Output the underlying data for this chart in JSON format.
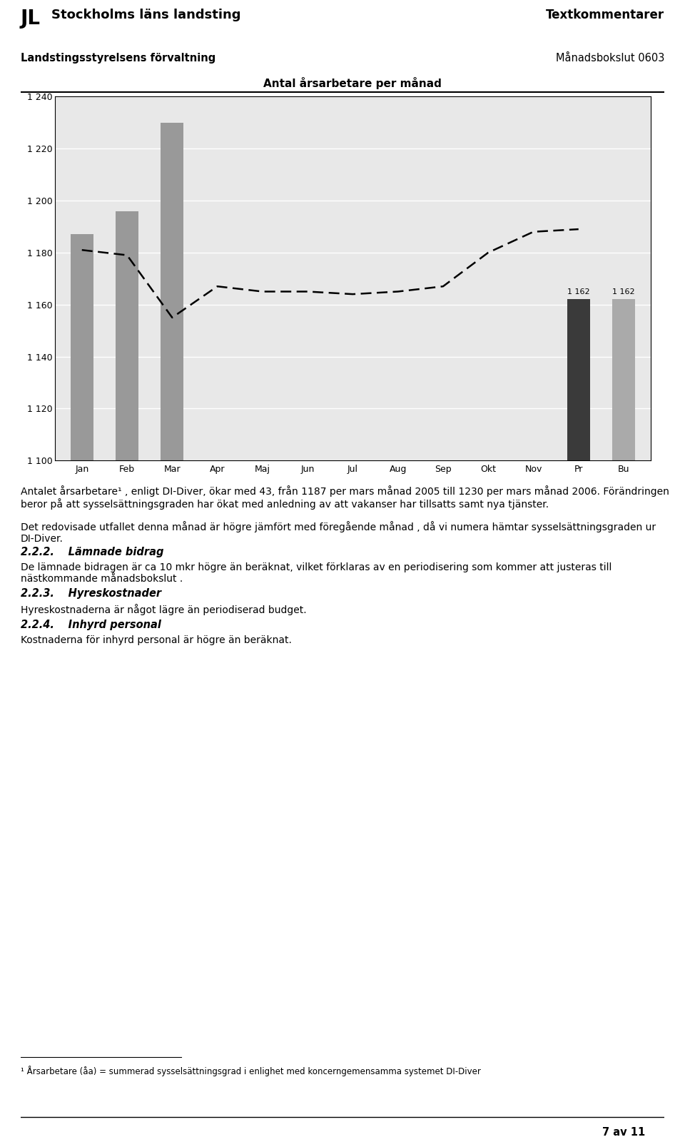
{
  "title": "Antal årsarbetare per månad",
  "header_left_line1": "Stockholms läns landsting",
  "header_left_line2": "Landstingsstyrelsens förvaltning",
  "header_right_line1": "Textkommentarer",
  "header_right_line2": "Månadsbokslut 0603",
  "categories": [
    "Jan",
    "Feb",
    "Mar",
    "Apr",
    "Maj",
    "Jun",
    "Jul",
    "Aug",
    "Sep",
    "Okt",
    "Nov",
    "Pr",
    "Bu"
  ],
  "bar_values": [
    1187,
    1196,
    1230,
    null,
    null,
    null,
    null,
    null,
    null,
    null,
    null,
    1162,
    1162
  ],
  "bar_colors": [
    "#999999",
    "#999999",
    "#999999",
    null,
    null,
    null,
    null,
    null,
    null,
    null,
    null,
    "#3a3a3a",
    "#aaaaaa"
  ],
  "dashed_line_values": [
    1181,
    1179,
    1155,
    1167,
    1165,
    1165,
    1164,
    1165,
    1167,
    1180,
    1188,
    1189,
    null
  ],
  "bar_labels": [
    null,
    null,
    null,
    null,
    null,
    null,
    null,
    null,
    null,
    null,
    null,
    "1 162",
    "1 162"
  ],
  "ylim": [
    1100,
    1240
  ],
  "yticks": [
    1100,
    1120,
    1140,
    1160,
    1180,
    1200,
    1220,
    1240
  ],
  "ytick_labels": [
    "1 100",
    "1 120",
    "1 140",
    "1 160",
    "1 180",
    "1 200",
    "1 220",
    "1 240"
  ],
  "body_paragraphs": [
    {
      "text": "Antalet årsarbetare¹ , enligt DI-Diver, ökar med 43, från 1187 per mars månad 2005 till 1230 per mars månad 2006. Förändringen beror på att sysselsättningsgraden har ökat med anledning av att vakanser har tillsatts samt nya tjänster.",
      "style": "normal"
    },
    {
      "text": "Det redovisade utfallet denna månad är högre jämfört med föregående månad , då vi numera hämtar sysselsättningsgraden ur DI-Diver.",
      "style": "normal"
    },
    {
      "text": "2.2.2.  Lämnade bidrag",
      "style": "bold_italic_heading"
    },
    {
      "text": "De lämnade bidragen är ca 10 mkr högre än beräknat, vilket förklaras av en periodisering som kommer att justeras till nästkommande månadsbokslut .",
      "style": "normal"
    },
    {
      "text": "2.2.3.  Hyreskostnader",
      "style": "bold_italic_heading"
    },
    {
      "text": "Hyreskostnaderna är något lägre än periodiserad budget.",
      "style": "normal"
    },
    {
      "text": "2.2.4.  Inhyrd personal",
      "style": "bold_italic_heading"
    },
    {
      "text": "Kostnaderna för inhyrd personal är högre än beräknat.",
      "style": "normal"
    }
  ],
  "footnote": "¹ Årsarbetare (åa) = summerad sysselsättningsgrad i enlighet med koncerngemensamma systemet DI-Diver",
  "page_note": "7 av 11",
  "fig_width": 9.6,
  "fig_height": 15.93,
  "dpi": 100
}
